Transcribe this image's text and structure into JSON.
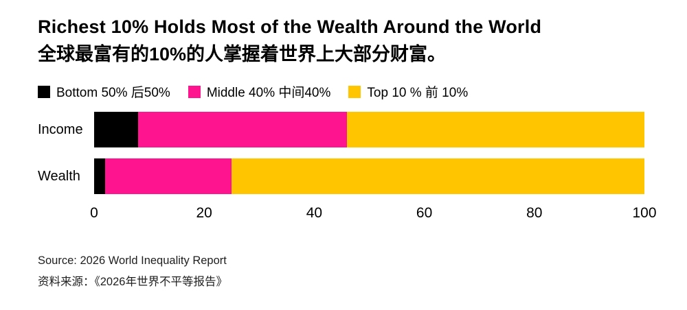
{
  "header": {
    "title": "Richest 10% Holds Most of the Wealth Around the World",
    "subtitle_zh": "全球最富有的10%的人掌握着世界上大部分财富。"
  },
  "legend": [
    {
      "label": "Bottom 50% 后50%",
      "color": "#000000"
    },
    {
      "label": "Middle 40% 中间40%",
      "color": "#ff148f"
    },
    {
      "label": "Top 10 % 前 10%",
      "color": "#ffc600"
    }
  ],
  "chart_data": {
    "type": "bar",
    "orientation": "horizontal",
    "stacked": true,
    "categories": [
      "Income",
      "Wealth"
    ],
    "series": [
      {
        "name": "Bottom 50% 后50%",
        "color": "#000000",
        "values": [
          8,
          2
        ]
      },
      {
        "name": "Middle 40% 中间40%",
        "color": "#ff148f",
        "values": [
          38,
          23
        ]
      },
      {
        "name": "Top 10 % 前 10%",
        "color": "#ffc600",
        "values": [
          54,
          75
        ]
      }
    ],
    "xlim": [
      0,
      100
    ],
    "x_ticks": [
      0,
      20,
      40,
      60,
      80,
      100
    ],
    "grid": false,
    "legend_position": "top"
  },
  "source": {
    "line1": "Source: 2026 World Inequality Report",
    "line2": "资料来源：《2026年世界不平等报告》"
  }
}
